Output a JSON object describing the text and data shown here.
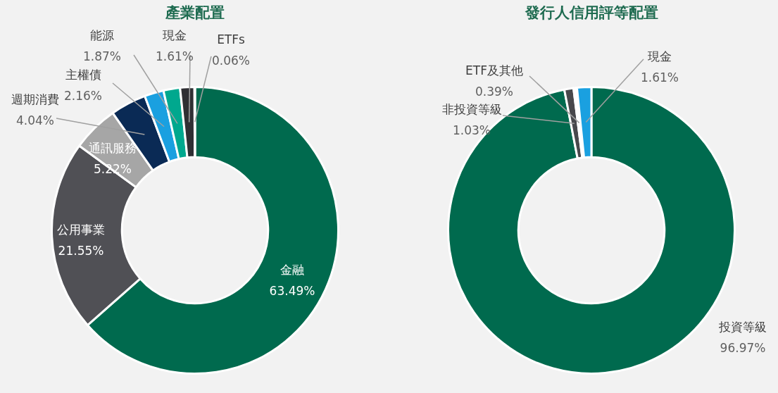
{
  "chart_data": [
    {
      "type": "donut",
      "title": "產業配置",
      "categories": [
        "金融",
        "公用事業",
        "通訊服務",
        "週期消費",
        "主權債",
        "能源",
        "現金",
        "ETFs"
      ],
      "values": [
        63.49,
        21.55,
        5.22,
        4.04,
        2.16,
        1.87,
        1.61,
        0.06
      ],
      "colors": [
        "#006a4e",
        "#505055",
        "#a6a6a6",
        "#0a2a55",
        "#1aa0e0",
        "#00a88e",
        "#2f2f33",
        "#c8c8c8"
      ],
      "value_labels": [
        "63.49%",
        "21.55%",
        "5.22%",
        "4.04%",
        "2.16%",
        "1.87%",
        "1.61%",
        "0.06%"
      ]
    },
    {
      "type": "donut",
      "title": "發行人信用評等配置",
      "categories": [
        "投資等級",
        "非投資等級",
        "ETF及其他",
        "現金"
      ],
      "values": [
        96.97,
        1.03,
        0.39,
        1.61
      ],
      "colors": [
        "#006a4e",
        "#48484c",
        "#ffffff",
        "#1aa0e0"
      ],
      "value_labels": [
        "96.97%",
        "1.03%",
        "0.39%",
        "1.61%"
      ]
    }
  ]
}
